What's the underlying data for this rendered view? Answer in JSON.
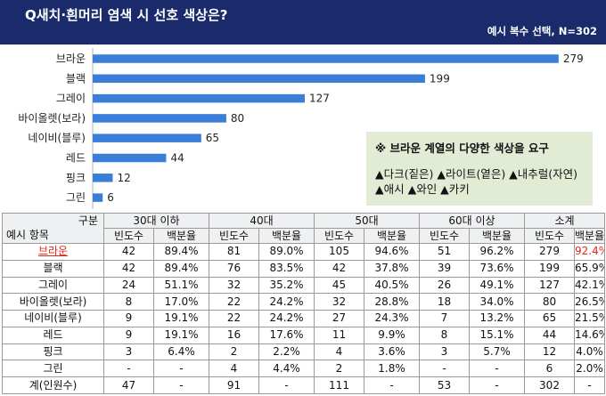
{
  "header": {
    "title": "Q새치·흰머리 염색 시 선호 색상은?",
    "subtitle": "예시 복수 선택, N=302"
  },
  "colors": {
    "header_bg": "#1b2a6b",
    "bar": "#3a7ed8",
    "note_bg": "#e2ecd5",
    "highlight": "#e0281c"
  },
  "chart_data": {
    "type": "bar",
    "orientation": "horizontal",
    "categories": [
      "브라운",
      "블랙",
      "그레이",
      "바이올렛(보라)",
      "네이비(블루)",
      "레드",
      "핑크",
      "그린"
    ],
    "values": [
      279,
      199,
      127,
      80,
      65,
      44,
      12,
      6
    ],
    "xlim": [
      0,
      300
    ],
    "grid": false,
    "legend": "none"
  },
  "note": {
    "title": "※ 브라운 계열의 다양한 색상을 요구",
    "line1": "▲다크(짙은) ▲라이트(옅은) ▲내추럴(자연)",
    "line2": "▲애시 ▲와인 ▲카키"
  },
  "table": {
    "corner_top": "구분",
    "corner_bottom": "예시 항목",
    "groups": [
      "30대 이하",
      "40대",
      "50대",
      "60대 이상",
      "소계"
    ],
    "subheaders": [
      "빈도수",
      "백분율"
    ],
    "rows": [
      {
        "name": "브라운",
        "cells": [
          "42",
          "89.4%",
          "81",
          "89.0%",
          "105",
          "94.6%",
          "51",
          "96.2%",
          "279",
          "92.4%"
        ]
      },
      {
        "name": "블랙",
        "cells": [
          "42",
          "89.4%",
          "76",
          "83.5%",
          "42",
          "37.8%",
          "39",
          "73.6%",
          "199",
          "65.9%"
        ]
      },
      {
        "name": "그레이",
        "cells": [
          "24",
          "51.1%",
          "32",
          "35.2%",
          "45",
          "40.5%",
          "26",
          "49.1%",
          "127",
          "42.1%"
        ]
      },
      {
        "name": "바이올렛(보라)",
        "cells": [
          "8",
          "17.0%",
          "22",
          "24.2%",
          "32",
          "28.8%",
          "18",
          "34.0%",
          "80",
          "26.5%"
        ]
      },
      {
        "name": "네이비(블루)",
        "cells": [
          "9",
          "19.1%",
          "22",
          "24.2%",
          "27",
          "24.3%",
          "7",
          "13.2%",
          "65",
          "21.5%"
        ]
      },
      {
        "name": "레드",
        "cells": [
          "9",
          "19.1%",
          "16",
          "17.6%",
          "11",
          "9.9%",
          "8",
          "15.1%",
          "44",
          "14.6%"
        ]
      },
      {
        "name": "핑크",
        "cells": [
          "3",
          "6.4%",
          "2",
          "2.2%",
          "4",
          "3.6%",
          "3",
          "5.7%",
          "12",
          "4.0%"
        ]
      },
      {
        "name": "그린",
        "cells": [
          "-",
          "-",
          "4",
          "4.4%",
          "2",
          "1.8%",
          "-",
          "-",
          "6",
          "2.0%"
        ]
      },
      {
        "name": "계(인원수)",
        "cells": [
          "47",
          "-",
          "91",
          "-",
          "111",
          "-",
          "53",
          "-",
          "302",
          "-"
        ]
      }
    ]
  }
}
